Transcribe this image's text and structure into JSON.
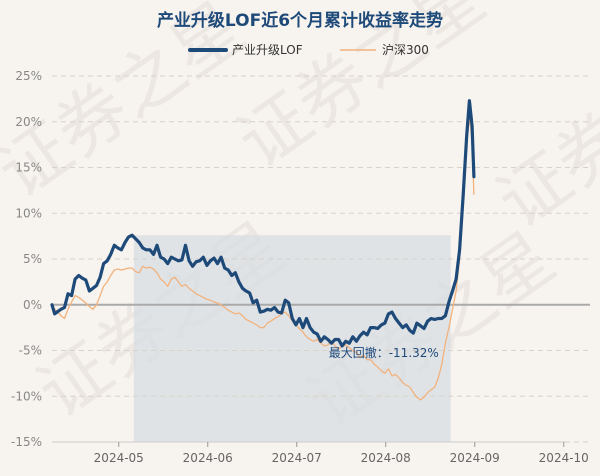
{
  "chart_data": {
    "type": "line",
    "title": "产业升级LOF近6个月累计收益率走势",
    "yticks": [
      "25%",
      "20%",
      "15%",
      "10%",
      "5%",
      "0%",
      "-5%",
      "-10%",
      "-15%"
    ],
    "ylim": [
      -15,
      25
    ],
    "xticks": [
      "2024-05",
      "2024-06",
      "2024-07",
      "2024-08",
      "2024-09",
      "2024-10"
    ],
    "grid": true,
    "legend_position": "top-center",
    "annotation": {
      "text": "最大回撤：-11.32%",
      "from": 0.92,
      "to": 4.48
    },
    "colors": {
      "fund": "#1e4a7a",
      "index": "#f2b27d",
      "drawdown": "#d8dde3",
      "zero": "#aaaaaa",
      "grid": "#d8d2c8"
    },
    "watermark": "证券之星",
    "series": [
      {
        "name": "产业升级LOF",
        "color": "#1e4a7a",
        "points": [
          [
            0,
            0
          ],
          [
            0.03,
            -1
          ],
          [
            0.07,
            -0.7
          ],
          [
            0.1,
            -0.5
          ],
          [
            0.14,
            -0.3
          ],
          [
            0.18,
            1.2
          ],
          [
            0.22,
            1
          ],
          [
            0.26,
            2.8
          ],
          [
            0.3,
            3.2
          ],
          [
            0.34,
            2.9
          ],
          [
            0.38,
            2.7
          ],
          [
            0.42,
            1.5
          ],
          [
            0.46,
            1.8
          ],
          [
            0.5,
            2.1
          ],
          [
            0.54,
            3
          ],
          [
            0.58,
            4.5
          ],
          [
            0.62,
            4.8
          ],
          [
            0.66,
            5.5
          ],
          [
            0.7,
            6.5
          ],
          [
            0.74,
            6.2
          ],
          [
            0.78,
            6
          ],
          [
            0.82,
            6.8
          ],
          [
            0.86,
            7.4
          ],
          [
            0.9,
            7.6
          ],
          [
            0.94,
            7.2
          ],
          [
            0.98,
            6.8
          ],
          [
            1.02,
            6.2
          ],
          [
            1.06,
            6
          ],
          [
            1.1,
            6
          ],
          [
            1.14,
            5.5
          ],
          [
            1.18,
            6.5
          ],
          [
            1.22,
            5.2
          ],
          [
            1.26,
            5
          ],
          [
            1.3,
            4.5
          ],
          [
            1.34,
            5.2
          ],
          [
            1.38,
            5
          ],
          [
            1.42,
            4.8
          ],
          [
            1.46,
            4.9
          ],
          [
            1.5,
            6.5
          ],
          [
            1.54,
            4.8
          ],
          [
            1.58,
            4.2
          ],
          [
            1.62,
            4.7
          ],
          [
            1.66,
            4.8
          ],
          [
            1.7,
            5.2
          ],
          [
            1.74,
            4.3
          ],
          [
            1.78,
            4.8
          ],
          [
            1.82,
            5.1
          ],
          [
            1.86,
            4.5
          ],
          [
            1.9,
            5.2
          ],
          [
            1.94,
            4
          ],
          [
            1.98,
            3.8
          ],
          [
            2.02,
            3.2
          ],
          [
            2.06,
            3.5
          ],
          [
            2.1,
            2.5
          ],
          [
            2.14,
            1.8
          ],
          [
            2.18,
            1.5
          ],
          [
            2.22,
            1.3
          ],
          [
            2.26,
            0.2
          ],
          [
            2.3,
            0.5
          ],
          [
            2.34,
            -0.8
          ],
          [
            2.38,
            -0.7
          ],
          [
            2.42,
            -0.5
          ],
          [
            2.46,
            -0.6
          ],
          [
            2.5,
            -0.3
          ],
          [
            2.54,
            -0.8
          ],
          [
            2.58,
            -0.9
          ],
          [
            2.62,
            0.5
          ],
          [
            2.66,
            0.2
          ],
          [
            2.7,
            -1.5
          ],
          [
            2.74,
            -2.2
          ],
          [
            2.78,
            -1.5
          ],
          [
            2.82,
            -2.5
          ],
          [
            2.86,
            -1.5
          ],
          [
            2.9,
            -2.5
          ],
          [
            2.94,
            -3
          ],
          [
            2.98,
            -3.2
          ],
          [
            3.02,
            -4
          ],
          [
            3.06,
            -3.5
          ],
          [
            3.1,
            -3.8
          ],
          [
            3.14,
            -4.2
          ],
          [
            3.18,
            -3.8
          ],
          [
            3.22,
            -3.8
          ],
          [
            3.26,
            -4.5
          ],
          [
            3.3,
            -4
          ],
          [
            3.34,
            -4.2
          ],
          [
            3.38,
            -3.5
          ],
          [
            3.42,
            -4
          ],
          [
            3.46,
            -3.4
          ],
          [
            3.5,
            -3
          ],
          [
            3.54,
            -3.3
          ],
          [
            3.58,
            -2.5
          ],
          [
            3.62,
            -2.5
          ],
          [
            3.66,
            -2.6
          ],
          [
            3.7,
            -2.2
          ],
          [
            3.74,
            -2
          ],
          [
            3.78,
            -1
          ],
          [
            3.82,
            -0.8
          ],
          [
            3.86,
            -1.5
          ],
          [
            3.9,
            -2
          ],
          [
            3.94,
            -2.5
          ],
          [
            3.98,
            -2.2
          ],
          [
            4.02,
            -2.8
          ],
          [
            4.06,
            -3.1
          ],
          [
            4.1,
            -2
          ],
          [
            4.14,
            -2.3
          ],
          [
            4.18,
            -2.6
          ],
          [
            4.22,
            -1.8
          ],
          [
            4.26,
            -1.5
          ],
          [
            4.3,
            -1.6
          ],
          [
            4.34,
            -1.5
          ],
          [
            4.38,
            -1.5
          ],
          [
            4.42,
            -1.2
          ],
          [
            4.46,
            0.3
          ],
          [
            4.5,
            1.5
          ],
          [
            4.54,
            2.8
          ],
          [
            4.58,
            6
          ],
          [
            4.62,
            12
          ],
          [
            4.66,
            18.5
          ],
          [
            4.69,
            22.3
          ],
          [
            4.72,
            19.5
          ],
          [
            4.74,
            14
          ]
        ]
      },
      {
        "name": "沪深300",
        "color": "#f2b27d",
        "points": [
          [
            0,
            0
          ],
          [
            0.03,
            -0.5
          ],
          [
            0.07,
            -0.8
          ],
          [
            0.1,
            -1.2
          ],
          [
            0.14,
            -1.5
          ],
          [
            0.18,
            -0.5
          ],
          [
            0.22,
            0.3
          ],
          [
            0.26,
            1
          ],
          [
            0.3,
            0.8
          ],
          [
            0.34,
            0.5
          ],
          [
            0.38,
            0.2
          ],
          [
            0.42,
            -0.2
          ],
          [
            0.46,
            -0.5
          ],
          [
            0.5,
            0
          ],
          [
            0.54,
            1
          ],
          [
            0.58,
            2
          ],
          [
            0.62,
            2.5
          ],
          [
            0.66,
            3.2
          ],
          [
            0.7,
            3.8
          ],
          [
            0.74,
            3.9
          ],
          [
            0.78,
            3.8
          ],
          [
            0.82,
            3.9
          ],
          [
            0.86,
            4
          ],
          [
            0.9,
            4
          ],
          [
            0.94,
            3.6
          ],
          [
            0.98,
            3.5
          ],
          [
            1.02,
            4.2
          ],
          [
            1.06,
            4
          ],
          [
            1.1,
            4.1
          ],
          [
            1.14,
            3.9
          ],
          [
            1.18,
            3.5
          ],
          [
            1.22,
            2.8
          ],
          [
            1.26,
            2.5
          ],
          [
            1.3,
            2
          ],
          [
            1.34,
            2.8
          ],
          [
            1.38,
            3
          ],
          [
            1.42,
            2.5
          ],
          [
            1.46,
            2
          ],
          [
            1.5,
            2.2
          ],
          [
            1.54,
            1.8
          ],
          [
            1.58,
            1.5
          ],
          [
            1.62,
            1.2
          ],
          [
            1.66,
            1
          ],
          [
            1.7,
            0.8
          ],
          [
            1.74,
            0.6
          ],
          [
            1.78,
            0.5
          ],
          [
            1.82,
            0.3
          ],
          [
            1.86,
            0.2
          ],
          [
            1.9,
            0
          ],
          [
            1.94,
            -0.3
          ],
          [
            1.98,
            -0.6
          ],
          [
            2.02,
            -0.8
          ],
          [
            2.06,
            -1
          ],
          [
            2.1,
            -0.9
          ],
          [
            2.14,
            -1.2
          ],
          [
            2.18,
            -1.6
          ],
          [
            2.22,
            -1.8
          ],
          [
            2.26,
            -2
          ],
          [
            2.3,
            -2.2
          ],
          [
            2.34,
            -2.5
          ],
          [
            2.38,
            -2.5
          ],
          [
            2.42,
            -2
          ],
          [
            2.46,
            -1.8
          ],
          [
            2.5,
            -1.5
          ],
          [
            2.54,
            -1.3
          ],
          [
            2.58,
            -1
          ],
          [
            2.62,
            -0.8
          ],
          [
            2.66,
            -1.2
          ],
          [
            2.7,
            -1.8
          ],
          [
            2.74,
            -2.2
          ],
          [
            2.78,
            -2.6
          ],
          [
            2.82,
            -3
          ],
          [
            2.86,
            -3.5
          ],
          [
            2.9,
            -3.8
          ],
          [
            2.94,
            -4
          ],
          [
            2.98,
            -3.8
          ],
          [
            3.02,
            -4.2
          ],
          [
            3.06,
            -4.5
          ],
          [
            3.1,
            -4.4
          ],
          [
            3.14,
            -4
          ],
          [
            3.18,
            -4.5
          ],
          [
            3.22,
            -4.8
          ],
          [
            3.26,
            -4.6
          ],
          [
            3.3,
            -4.4
          ],
          [
            3.34,
            -4.7
          ],
          [
            3.38,
            -5
          ],
          [
            3.42,
            -5.2
          ],
          [
            3.46,
            -5.8
          ],
          [
            3.5,
            -5.5
          ],
          [
            3.54,
            -6
          ],
          [
            3.58,
            -6
          ],
          [
            3.62,
            -6.5
          ],
          [
            3.66,
            -6.8
          ],
          [
            3.7,
            -7.2
          ],
          [
            3.74,
            -7.5
          ],
          [
            3.78,
            -7
          ],
          [
            3.82,
            -7.8
          ],
          [
            3.86,
            -7.6
          ],
          [
            3.9,
            -8
          ],
          [
            3.94,
            -8.5
          ],
          [
            3.98,
            -8.8
          ],
          [
            4.02,
            -9
          ],
          [
            4.06,
            -9.6
          ],
          [
            4.1,
            -10.1
          ],
          [
            4.14,
            -10.4
          ],
          [
            4.18,
            -10.1
          ],
          [
            4.22,
            -9.6
          ],
          [
            4.26,
            -9.3
          ],
          [
            4.3,
            -9
          ],
          [
            4.34,
            -8
          ],
          [
            4.38,
            -6.5
          ],
          [
            4.42,
            -4.2
          ],
          [
            4.46,
            -2.5
          ],
          [
            4.5,
            -0.5
          ],
          [
            4.54,
            1.5
          ],
          [
            4.58,
            5
          ],
          [
            4.62,
            11
          ],
          [
            4.66,
            17.5
          ],
          [
            4.69,
            20.5
          ],
          [
            4.72,
            18
          ],
          [
            4.74,
            12
          ]
        ]
      }
    ]
  }
}
